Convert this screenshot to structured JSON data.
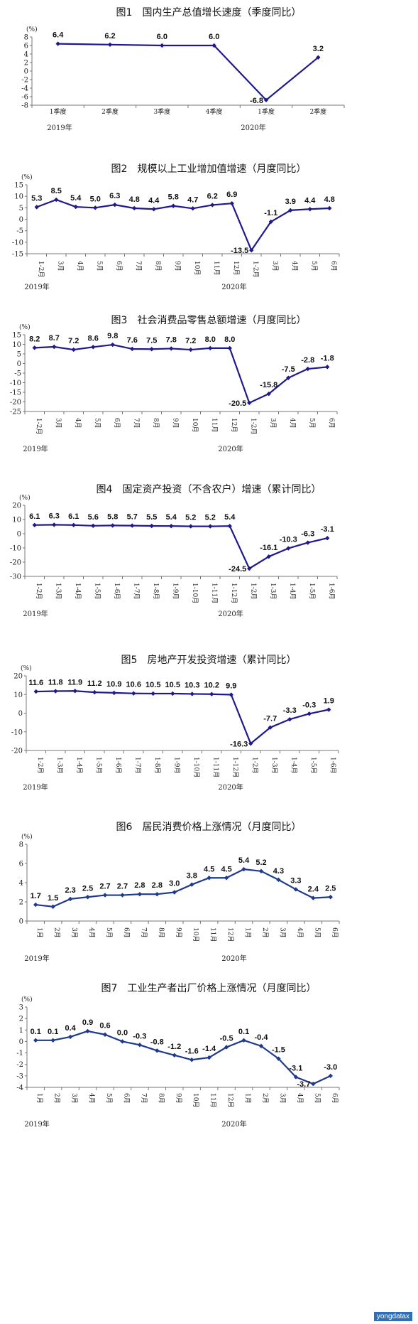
{
  "chart_data": [
    {
      "type": "line",
      "title": "图1　国内生产总值增长速度（季度同比）",
      "unit": "(%)",
      "categories": [
        "1季度",
        "2季度",
        "3季度",
        "4季度",
        "1季度",
        "2季度"
      ],
      "values": [
        6.4,
        6.2,
        6.0,
        6.0,
        -6.8,
        3.2
      ],
      "labels": [
        "6.4",
        "6.2",
        "6.0",
        "6.0",
        "-6.8",
        "3.2"
      ],
      "yticks": [
        "8",
        "6",
        "4",
        "2",
        "0",
        "-2",
        "-4",
        "-6",
        "-8"
      ],
      "ylim": [
        -8,
        8
      ],
      "years": [
        "2019年",
        "2020年"
      ],
      "color": "#1f1a8c"
    },
    {
      "type": "line",
      "title": "图2　规模以上工业增加值增速（月度同比）",
      "unit": "(%)",
      "categories": [
        "1-2月",
        "3月",
        "4月",
        "5月",
        "6月",
        "7月",
        "8月",
        "9月",
        "10月",
        "11月",
        "12月",
        "1-2月",
        "3月",
        "4月",
        "5月",
        "6月"
      ],
      "values": [
        5.3,
        8.5,
        5.4,
        5.0,
        6.3,
        4.8,
        4.4,
        5.8,
        4.7,
        6.2,
        6.9,
        -13.5,
        -1.1,
        3.9,
        4.4,
        4.8
      ],
      "labels": [
        "5.3",
        "8.5",
        "5.4",
        "5.0",
        "6.3",
        "4.8",
        "4.4",
        "5.8",
        "4.7",
        "6.2",
        "6.9",
        "-13.5",
        "-1.1",
        "3.9",
        "4.4",
        "4.8"
      ],
      "yticks": [
        "15",
        "10",
        "5",
        "0",
        "-5",
        "-10",
        "-15"
      ],
      "ylim": [
        -15,
        15
      ],
      "years": [
        "2019年",
        "2020年"
      ],
      "color": "#1f1a8c"
    },
    {
      "type": "line",
      "title": "图3　社会消费品零售总额增速（月度同比）",
      "unit": "(%)",
      "categories": [
        "1-2月",
        "3月",
        "4月",
        "5月",
        "6月",
        "7月",
        "8月",
        "9月",
        "10月",
        "11月",
        "12月",
        "1-2月",
        "3月",
        "4月",
        "5月",
        "6月"
      ],
      "values": [
        8.2,
        8.7,
        7.2,
        8.6,
        9.8,
        7.6,
        7.5,
        7.8,
        7.2,
        8.0,
        8.0,
        -20.5,
        -15.8,
        -7.5,
        -2.8,
        -1.8
      ],
      "labels": [
        "8.2",
        "8.7",
        "7.2",
        "8.6",
        "9.8",
        "7.6",
        "7.5",
        "7.8",
        "7.2",
        "8.0",
        "8.0",
        "-20.5",
        "-15.8",
        "-7.5",
        "-2.8",
        "-1.8"
      ],
      "yticks": [
        "15",
        "10",
        "5",
        "0",
        "-5",
        "-10",
        "-15",
        "-20",
        "-25"
      ],
      "ylim": [
        -25,
        15
      ],
      "years": [
        "2019年",
        "2020年"
      ],
      "color": "#1f1a8c"
    },
    {
      "type": "line",
      "title": "图4　固定资产投资（不含农户）增速（累计同比）",
      "unit": "(%)",
      "categories": [
        "1-2月",
        "1-3月",
        "1-4月",
        "1-5月",
        "1-6月",
        "1-7月",
        "1-8月",
        "1-9月",
        "1-10月",
        "1-11月",
        "1-12月",
        "1-2月",
        "1-3月",
        "1-4月",
        "1-5月",
        "1-6月"
      ],
      "values": [
        6.1,
        6.3,
        6.1,
        5.6,
        5.8,
        5.7,
        5.5,
        5.4,
        5.2,
        5.2,
        5.4,
        -24.5,
        -16.1,
        -10.3,
        -6.3,
        -3.1
      ],
      "labels": [
        "6.1",
        "6.3",
        "6.1",
        "5.6",
        "5.8",
        "5.7",
        "5.5",
        "5.4",
        "5.2",
        "5.2",
        "5.4",
        "-24.5",
        "-16.1",
        "-10.3",
        "-6.3",
        "-3.1"
      ],
      "yticks": [
        "20",
        "10",
        "0",
        "-10",
        "-20",
        "-30"
      ],
      "ylim": [
        -30,
        20
      ],
      "years": [
        "2019年",
        "2020年"
      ],
      "color": "#1f1a8c"
    },
    {
      "type": "line",
      "title": "图5　房地产开发投资增速（累计同比）",
      "unit": "(%)",
      "categories": [
        "1-2月",
        "1-3月",
        "1-4月",
        "1-5月",
        "1-6月",
        "1-7月",
        "1-8月",
        "1-9月",
        "1-10月",
        "1-11月",
        "1-12月",
        "1-2月",
        "1-3月",
        "1-4月",
        "1-5月",
        "1-6月"
      ],
      "values": [
        11.6,
        11.8,
        11.9,
        11.2,
        10.9,
        10.6,
        10.5,
        10.5,
        10.3,
        10.2,
        9.9,
        -16.3,
        -7.7,
        -3.3,
        -0.3,
        1.9
      ],
      "labels": [
        "11.6",
        "11.8",
        "11.9",
        "11.2",
        "10.9",
        "10.6",
        "10.5",
        "10.5",
        "10.3",
        "10.2",
        "9.9",
        "-16.3",
        "-7.7",
        "-3.3",
        "-0.3",
        "1.9"
      ],
      "yticks": [
        "20",
        "10",
        "0",
        "-10",
        "-20"
      ],
      "ylim": [
        -20,
        20
      ],
      "years": [
        "2019年",
        "2020年"
      ],
      "color": "#1f1a8c"
    },
    {
      "type": "line",
      "title": "图6　居民消费价格上涨情况（月度同比）",
      "unit": "(%)",
      "categories": [
        "1月",
        "2月",
        "3月",
        "4月",
        "5月",
        "6月",
        "7月",
        "8月",
        "9月",
        "10月",
        "11月",
        "12月",
        "1月",
        "2月",
        "3月",
        "4月",
        "5月",
        "6月"
      ],
      "values": [
        1.7,
        1.5,
        2.3,
        2.5,
        2.7,
        2.7,
        2.8,
        2.8,
        3.0,
        3.8,
        4.5,
        4.5,
        5.4,
        5.2,
        4.3,
        3.3,
        2.4,
        2.5
      ],
      "labels": [
        "1.7",
        "1.5",
        "2.3",
        "2.5",
        "2.7",
        "2.7",
        "2.8",
        "2.8",
        "3.0",
        "3.8",
        "4.5",
        "4.5",
        "5.4",
        "5.2",
        "4.3",
        "3.3",
        "2.4",
        "2.5"
      ],
      "yticks": [
        "8",
        "6",
        "4",
        "2",
        "0"
      ],
      "ylim": [
        0,
        8
      ],
      "years": [
        "2019年",
        "2020年"
      ],
      "color": "#1f3a8c"
    },
    {
      "type": "line",
      "title": "图7　工业生产者出厂价格上涨情况（月度同比）",
      "unit": "(%)",
      "categories": [
        "1月",
        "2月",
        "3月",
        "4月",
        "5月",
        "6月",
        "7月",
        "8月",
        "9月",
        "10月",
        "11月",
        "12月",
        "1月",
        "2月",
        "3月",
        "4月",
        "5月",
        "6月"
      ],
      "values": [
        0.1,
        0.1,
        0.4,
        0.9,
        0.6,
        0.0,
        -0.3,
        -0.8,
        -1.2,
        -1.6,
        -1.4,
        -0.5,
        0.1,
        -0.4,
        -1.5,
        -3.1,
        -3.7,
        -3.0
      ],
      "labels": [
        "0.1",
        "0.1",
        "0.4",
        "0.9",
        "0.6",
        "0.0",
        "-0.3",
        "-0.8",
        "-1.2",
        "-1.6",
        "-1.4",
        "-0.5",
        "0.1",
        "-0.4",
        "-1.5",
        "-3.1",
        "-3.7",
        "-3.0"
      ],
      "yticks": [
        "3",
        "2",
        "1",
        "0",
        "-1",
        "-2",
        "-3",
        "-4"
      ],
      "ylim": [
        -4,
        3
      ],
      "years": [
        "2019年",
        "2020年"
      ],
      "color": "#1f3a8c"
    }
  ],
  "watermark": "yongdatax"
}
